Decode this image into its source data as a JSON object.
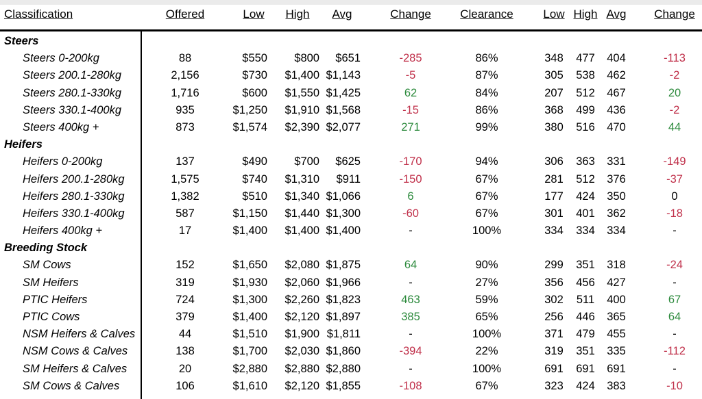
{
  "headers": {
    "classification": "Classification",
    "offered": "Offered",
    "low": "Low",
    "high": "High",
    "avg": "Avg",
    "change": "Change",
    "clearance": "Clearance",
    "low_ckg": "Low",
    "high_ckg": "High",
    "avg_ckg": "Avg",
    "change_ckg": "Change"
  },
  "colors": {
    "negative": "#c0304a",
    "positive": "#2e8b3e"
  },
  "rows": [
    {
      "type": "group",
      "label": "Steers"
    },
    {
      "type": "item",
      "label": "Steers 0-200kg",
      "offered": "88",
      "low": "$550",
      "high": "$800",
      "avg": "$651",
      "change": "-285",
      "change_sign": "neg",
      "clearance": "86%",
      "low2": "348",
      "high2": "477",
      "avg2": "404",
      "change2": "-113",
      "change2_sign": "neg"
    },
    {
      "type": "item",
      "label": "Steers 200.1-280kg",
      "offered": "2,156",
      "low": "$730",
      "high": "$1,400",
      "avg": "$1,143",
      "change": "-5",
      "change_sign": "neg",
      "clearance": "87%",
      "low2": "305",
      "high2": "538",
      "avg2": "462",
      "change2": "-2",
      "change2_sign": "neg"
    },
    {
      "type": "item",
      "label": "Steers 280.1-330kg",
      "offered": "1,716",
      "low": "$600",
      "high": "$1,550",
      "avg": "$1,425",
      "change": "62",
      "change_sign": "pos",
      "clearance": "84%",
      "low2": "207",
      "high2": "512",
      "avg2": "467",
      "change2": "20",
      "change2_sign": "pos"
    },
    {
      "type": "item",
      "label": "Steers 330.1-400kg",
      "offered": "935",
      "low": "$1,250",
      "high": "$1,910",
      "avg": "$1,568",
      "change": "-15",
      "change_sign": "neg",
      "clearance": "86%",
      "low2": "368",
      "high2": "499",
      "avg2": "436",
      "change2": "-2",
      "change2_sign": "neg"
    },
    {
      "type": "item",
      "label": "Steers 400kg +",
      "offered": "873",
      "low": "$1,574",
      "high": "$2,390",
      "avg": "$2,077",
      "change": "271",
      "change_sign": "pos",
      "clearance": "99%",
      "low2": "380",
      "high2": "516",
      "avg2": "470",
      "change2": "44",
      "change2_sign": "pos"
    },
    {
      "type": "group",
      "label": "Heifers"
    },
    {
      "type": "item",
      "label": "Heifers 0-200kg",
      "offered": "137",
      "low": "$490",
      "high": "$700",
      "avg": "$625",
      "change": "-170",
      "change_sign": "neg",
      "clearance": "94%",
      "low2": "306",
      "high2": "363",
      "avg2": "331",
      "change2": "-149",
      "change2_sign": "neg"
    },
    {
      "type": "item",
      "label": "Heifers 200.1-280kg",
      "offered": "1,575",
      "low": "$740",
      "high": "$1,310",
      "avg": "$911",
      "change": "-150",
      "change_sign": "neg",
      "clearance": "67%",
      "low2": "281",
      "high2": "512",
      "avg2": "376",
      "change2": "-37",
      "change2_sign": "neg"
    },
    {
      "type": "item",
      "label": "Heifers 280.1-330kg",
      "offered": "1,382",
      "low": "$510",
      "high": "$1,340",
      "avg": "$1,066",
      "change": "6",
      "change_sign": "pos",
      "clearance": "67%",
      "low2": "177",
      "high2": "424",
      "avg2": "350",
      "change2": "0",
      "change2_sign": "zero"
    },
    {
      "type": "item",
      "label": "Heifers 330.1-400kg",
      "offered": "587",
      "low": "$1,150",
      "high": "$1,440",
      "avg": "$1,300",
      "change": "-60",
      "change_sign": "neg",
      "clearance": "67%",
      "low2": "301",
      "high2": "401",
      "avg2": "362",
      "change2": "-18",
      "change2_sign": "neg"
    },
    {
      "type": "item",
      "label": "Heifers 400kg +",
      "offered": "17",
      "low": "$1,400",
      "high": "$1,400",
      "avg": "$1,400",
      "change": "-",
      "change_sign": "zero",
      "clearance": "100%",
      "low2": "334",
      "high2": "334",
      "avg2": "334",
      "change2": "-",
      "change2_sign": "zero"
    },
    {
      "type": "group",
      "label": "Breeding Stock"
    },
    {
      "type": "item",
      "label": "SM Cows",
      "offered": "152",
      "low": "$1,650",
      "high": "$2,080",
      "avg": "$1,875",
      "change": "64",
      "change_sign": "pos",
      "clearance": "90%",
      "low2": "299",
      "high2": "351",
      "avg2": "318",
      "change2": "-24",
      "change2_sign": "neg"
    },
    {
      "type": "item",
      "label": "SM Heifers",
      "offered": "319",
      "low": "$1,930",
      "high": "$2,060",
      "avg": "$1,966",
      "change": "-",
      "change_sign": "zero",
      "clearance": "27%",
      "low2": "356",
      "high2": "456",
      "avg2": "427",
      "change2": "-",
      "change2_sign": "zero"
    },
    {
      "type": "item",
      "label": "PTIC Heifers",
      "offered": "724",
      "low": "$1,300",
      "high": "$2,260",
      "avg": "$1,823",
      "change": "463",
      "change_sign": "pos",
      "clearance": "59%",
      "low2": "302",
      "high2": "511",
      "avg2": "400",
      "change2": "67",
      "change2_sign": "pos"
    },
    {
      "type": "item",
      "label": "PTIC Cows",
      "offered": "379",
      "low": "$1,400",
      "high": "$2,120",
      "avg": "$1,897",
      "change": "385",
      "change_sign": "pos",
      "clearance": "65%",
      "low2": "256",
      "high2": "446",
      "avg2": "365",
      "change2": "64",
      "change2_sign": "pos"
    },
    {
      "type": "item",
      "label": "NSM Heifers & Calves",
      "offered": "44",
      "low": "$1,510",
      "high": "$1,900",
      "avg": "$1,811",
      "change": "-",
      "change_sign": "zero",
      "clearance": "100%",
      "low2": "371",
      "high2": "479",
      "avg2": "455",
      "change2": "-",
      "change2_sign": "zero"
    },
    {
      "type": "item",
      "label": "NSM Cows & Calves",
      "offered": "138",
      "low": "$1,700",
      "high": "$2,030",
      "avg": "$1,860",
      "change": "-394",
      "change_sign": "neg",
      "clearance": "22%",
      "low2": "319",
      "high2": "351",
      "avg2": "335",
      "change2": "-112",
      "change2_sign": "neg"
    },
    {
      "type": "item",
      "label": "SM Heifers & Calves",
      "offered": "20",
      "low": "$2,880",
      "high": "$2,880",
      "avg": "$2,880",
      "change": "-",
      "change_sign": "zero",
      "clearance": "100%",
      "low2": "691",
      "high2": "691",
      "avg2": "691",
      "change2": "-",
      "change2_sign": "zero"
    },
    {
      "type": "item",
      "label": "SM Cows & Calves",
      "offered": "106",
      "low": "$1,610",
      "high": "$2,120",
      "avg": "$1,855",
      "change": "-108",
      "change_sign": "neg",
      "clearance": "67%",
      "low2": "323",
      "high2": "424",
      "avg2": "383",
      "change2": "-10",
      "change2_sign": "neg"
    }
  ]
}
